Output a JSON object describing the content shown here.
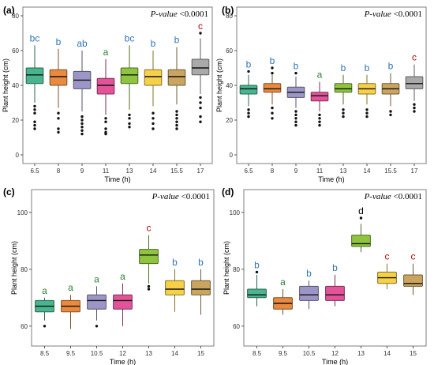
{
  "colors": {
    "green": "#48b58f",
    "orange": "#ea8a3e",
    "purple": "#9c96c7",
    "pink": "#e3539a",
    "lime": "#8fc43f",
    "yellow": "#f6d046",
    "tan": "#caa560",
    "gray": "#a9a9a9",
    "letter_blue": "#2e75b6",
    "letter_green": "#2e7d32",
    "letter_red": "#c00000",
    "letter_black": "#000000"
  },
  "chart_data": [
    {
      "panel": "(a)",
      "type": "box",
      "xlabel": "Time (h)",
      "ylabel": "Plant height (cm)",
      "pvalue_label": "P-value",
      "pvalue_text": "<0.0001",
      "ylim": [
        -5,
        85
      ],
      "yticks": [
        0,
        20,
        40,
        60,
        80
      ],
      "categories": [
        "6.5",
        "8",
        "9",
        "11",
        "13",
        "14",
        "15.5",
        "17"
      ],
      "boxes": [
        {
          "q1": 41,
          "median": 46,
          "q3": 50,
          "low": 30,
          "high": 63,
          "letter": "bc",
          "fill": "green",
          "outliers": [
            28,
            26,
            24,
            19,
            17,
            15
          ]
        },
        {
          "q1": 40,
          "median": 45,
          "q3": 49,
          "low": 27,
          "high": 61,
          "letter": "b",
          "fill": "orange",
          "outliers": [
            24,
            21,
            15,
            13
          ]
        },
        {
          "q1": 38,
          "median": 43,
          "q3": 48,
          "low": 25,
          "high": 60,
          "letter": "ab",
          "fill": "purple",
          "outliers": [
            22,
            20,
            18,
            16,
            14,
            12
          ]
        },
        {
          "q1": 35,
          "median": 40,
          "q3": 44,
          "low": 23,
          "high": 55,
          "letter": "a",
          "fill": "pink",
          "outliers": [
            21,
            19,
            15,
            13,
            12
          ]
        },
        {
          "q1": 41,
          "median": 46,
          "q3": 50,
          "low": 26,
          "high": 63,
          "letter": "bc",
          "fill": "lime",
          "outliers": [
            23,
            21,
            18,
            16
          ]
        },
        {
          "q1": 40,
          "median": 45,
          "q3": 49,
          "low": 28,
          "high": 60,
          "letter": "b",
          "fill": "yellow",
          "outliers": [
            24,
            21,
            18,
            15
          ]
        },
        {
          "q1": 40,
          "median": 45,
          "q3": 49,
          "low": 29,
          "high": 62,
          "letter": "b",
          "fill": "tan",
          "outliers": [
            25,
            23,
            21,
            19,
            17,
            15
          ]
        },
        {
          "q1": 46,
          "median": 50,
          "q3": 55,
          "low": 35,
          "high": 67,
          "letter": "c",
          "fill": "gray",
          "outliers": [
            70,
            33,
            30,
            27,
            22,
            19
          ]
        }
      ]
    },
    {
      "panel": "(b)",
      "type": "box",
      "xlabel": "Time (h)",
      "ylabel": "Plant height (cm)",
      "pvalue_label": "P-value",
      "pvalue_text": "<0.0001",
      "ylim": [
        -5,
        85
      ],
      "yticks": [
        0,
        20,
        40,
        60,
        80
      ],
      "categories": [
        "6.5",
        "8",
        "9",
        "11",
        "13",
        "14",
        "15.5",
        "17"
      ],
      "boxes": [
        {
          "q1": 35,
          "median": 38,
          "q3": 40,
          "low": 28,
          "high": 46,
          "letter": "b",
          "fill": "green",
          "outliers": [
            48,
            26,
            24,
            22
          ]
        },
        {
          "q1": 36,
          "median": 38,
          "q3": 41,
          "low": 29,
          "high": 46,
          "letter": "b",
          "fill": "orange",
          "outliers": [
            50,
            47,
            27,
            24,
            21
          ]
        },
        {
          "q1": 33,
          "median": 36,
          "q3": 39,
          "low": 27,
          "high": 45,
          "letter": "b",
          "fill": "purple",
          "outliers": [
            47,
            25,
            23,
            21,
            19,
            17
          ]
        },
        {
          "q1": 31,
          "median": 34,
          "q3": 36,
          "low": 25,
          "high": 42,
          "letter": "a",
          "fill": "pink",
          "outliers": [
            23,
            21,
            19,
            17
          ]
        },
        {
          "q1": 36,
          "median": 38,
          "q3": 41,
          "low": 29,
          "high": 46,
          "letter": "b",
          "fill": "lime",
          "outliers": [
            26,
            24,
            22
          ]
        },
        {
          "q1": 35,
          "median": 38,
          "q3": 41,
          "low": 29,
          "high": 46,
          "letter": "b",
          "fill": "yellow",
          "outliers": [
            26,
            24,
            22
          ]
        },
        {
          "q1": 35,
          "median": 38,
          "q3": 41,
          "low": 28,
          "high": 47,
          "letter": "b",
          "fill": "tan",
          "outliers": [
            25,
            23
          ]
        },
        {
          "q1": 38,
          "median": 41,
          "q3": 45,
          "low": 31,
          "high": 52,
          "letter": "c",
          "fill": "gray",
          "outliers": [
            29,
            27,
            25
          ]
        }
      ]
    },
    {
      "panel": "(c)",
      "type": "box",
      "xlabel": "Time (h)",
      "ylabel": "Plant height (cm)",
      "pvalue_label": "P-value",
      "pvalue_text": "<0.0001",
      "ylim": [
        53,
        108
      ],
      "yticks": [
        60,
        80,
        100
      ],
      "categories": [
        "8.5",
        "9.5",
        "10.5",
        "12",
        "13",
        "14",
        "15"
      ],
      "boxes": [
        {
          "q1": 65,
          "median": 67,
          "q3": 69,
          "low": 62,
          "high": 70,
          "letter": "a",
          "fill": "green",
          "outliers": [
            60
          ]
        },
        {
          "q1": 65,
          "median": 67,
          "q3": 69,
          "low": 59,
          "high": 71,
          "letter": "a",
          "fill": "orange",
          "outliers": []
        },
        {
          "q1": 66,
          "median": 69,
          "q3": 71,
          "low": 62,
          "high": 74,
          "letter": "a",
          "fill": "purple",
          "outliers": [
            60
          ]
        },
        {
          "q1": 66,
          "median": 69,
          "q3": 71,
          "low": 60,
          "high": 75,
          "letter": "a",
          "fill": "pink",
          "outliers": []
        },
        {
          "q1": 82,
          "median": 85,
          "q3": 87,
          "low": 75,
          "high": 92,
          "letter": "c",
          "fill": "lime",
          "outliers": [
            74,
            73
          ]
        },
        {
          "q1": 71,
          "median": 73,
          "q3": 76,
          "low": 65,
          "high": 80,
          "letter": "b",
          "fill": "yellow",
          "outliers": []
        },
        {
          "q1": 71,
          "median": 73,
          "q3": 76,
          "low": 64,
          "high": 80,
          "letter": "b",
          "fill": "tan",
          "outliers": []
        }
      ]
    },
    {
      "panel": "(d)",
      "type": "box",
      "xlabel": "Time (h)",
      "ylabel": "Plant height (cm)",
      "pvalue_label": "P-value",
      "pvalue_text": "<0.0001",
      "ylim": [
        53,
        108
      ],
      "yticks": [
        60,
        80,
        100
      ],
      "categories": [
        "8.5",
        "9.5",
        "10.5",
        "12",
        "13",
        "14",
        "15"
      ],
      "boxes": [
        {
          "q1": 70,
          "median": 71,
          "q3": 73,
          "low": 67,
          "high": 78,
          "letter": "b",
          "fill": "green",
          "outliers": [
            79
          ]
        },
        {
          "q1": 66,
          "median": 68,
          "q3": 70,
          "low": 64,
          "high": 73,
          "letter": "a",
          "fill": "orange",
          "outliers": []
        },
        {
          "q1": 69,
          "median": 71,
          "q3": 74,
          "low": 66,
          "high": 76,
          "letter": "b",
          "fill": "purple",
          "outliers": []
        },
        {
          "q1": 69,
          "median": 71,
          "q3": 74,
          "low": 67,
          "high": 78,
          "letter": "b",
          "fill": "pink",
          "outliers": []
        },
        {
          "q1": 88,
          "median": 89,
          "q3": 92,
          "low": 86,
          "high": 96,
          "letter": "d",
          "fill": "lime",
          "outliers": [
            98
          ]
        },
        {
          "q1": 75,
          "median": 77,
          "q3": 79,
          "low": 73,
          "high": 82,
          "letter": "c",
          "fill": "yellow",
          "outliers": []
        },
        {
          "q1": 74,
          "median": 75,
          "q3": 78,
          "low": 71,
          "high": 82,
          "letter": "c",
          "fill": "tan",
          "outliers": []
        }
      ]
    }
  ]
}
